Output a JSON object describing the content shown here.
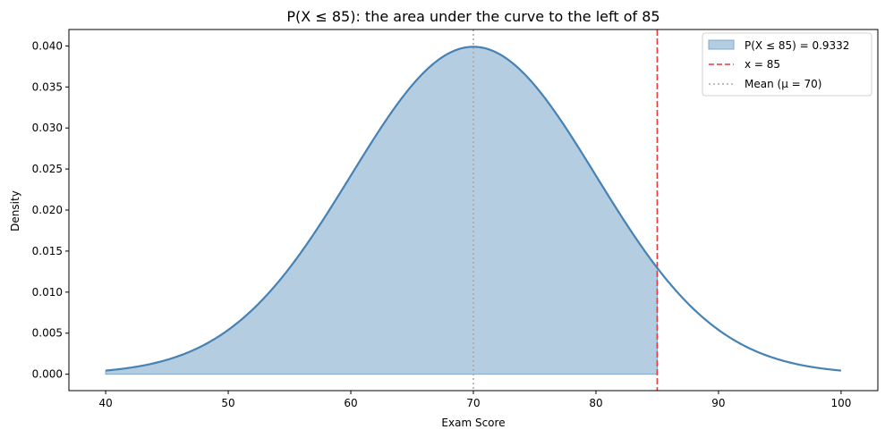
{
  "chart_data": {
    "type": "area",
    "title": "P(X ≤ 85): the area under the curve to the left of 85",
    "xlabel": "Exam Score",
    "ylabel": "Density",
    "xlim": [
      37,
      103
    ],
    "ylim": [
      -0.002,
      0.042
    ],
    "x_ticks": [
      40,
      50,
      60,
      70,
      80,
      90,
      100
    ],
    "y_ticks": [
      0.0,
      0.005,
      0.01,
      0.015,
      0.02,
      0.025,
      0.03,
      0.035,
      0.04
    ],
    "x_tick_labels": [
      "40",
      "50",
      "60",
      "70",
      "80",
      "90",
      "100"
    ],
    "y_tick_labels": [
      "0.000",
      "0.005",
      "0.010",
      "0.015",
      "0.020",
      "0.025",
      "0.030",
      "0.035",
      "0.040"
    ],
    "distribution": {
      "kind": "normal",
      "mean": 70,
      "sd": 10,
      "x_range": [
        40,
        100
      ]
    },
    "shaded_region": {
      "from": 40,
      "to": 85,
      "probability": 0.9332
    },
    "reference_lines": [
      {
        "x": 85,
        "style": "dashed",
        "color": "#e8383b"
      },
      {
        "x": 70,
        "style": "dotted",
        "color": "#aaaaaa"
      }
    ],
    "grid": false,
    "legend_position": "top-right",
    "legend": [
      {
        "label": "P(X ≤ 85) = 0.9332",
        "kind": "patch",
        "color": "#b3cde0"
      },
      {
        "label": "x = 85",
        "kind": "dashed-line",
        "color": "#e8383b"
      },
      {
        "label": "Mean (μ = 70)",
        "kind": "dotted-line",
        "color": "#aaaaaa"
      }
    ],
    "colors": {
      "curve": "#4682b4",
      "fill": "#b4cde1",
      "edge": "#7fa8cc"
    }
  }
}
